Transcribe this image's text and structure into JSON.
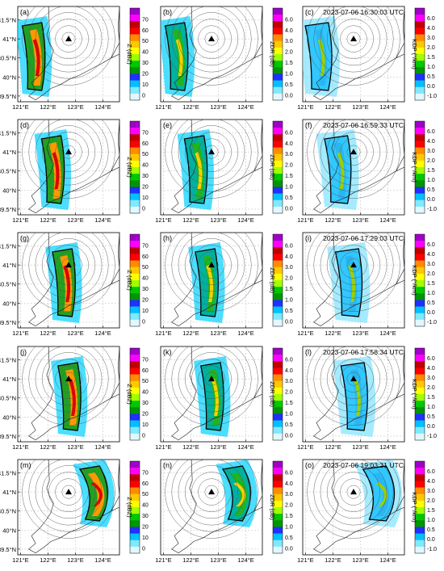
{
  "figure": {
    "colorbars": {
      "Z": {
        "label": "Z (dBZ)",
        "ticks": [
          "70",
          "60",
          "50",
          "40",
          "30",
          "20",
          "10",
          "0"
        ],
        "colors": [
          "#a000c8",
          "#ff00ff",
          "#c00000",
          "#ff0000",
          "#ff8c00",
          "#ffc800",
          "#ffff00",
          "#a0ff00",
          "#00c800",
          "#009600",
          "#2030ff",
          "#00c0ff",
          "#80e8ff",
          "#e0f8ff"
        ]
      },
      "ZDR": {
        "label": "ZDR (dB)",
        "ticks": [
          "6.0",
          "4.0",
          "3.0",
          "2.0",
          "1.5",
          "1.0",
          "0.5",
          "0.0"
        ],
        "colors": [
          "#a000c8",
          "#ff00ff",
          "#c00000",
          "#ff0000",
          "#ff8c00",
          "#ffc800",
          "#ffff00",
          "#a0ff00",
          "#00c800",
          "#009600",
          "#2030ff",
          "#00c0ff",
          "#80e8ff",
          "#e0f8ff"
        ]
      },
      "KDP": {
        "label": "KDP (°/km)",
        "ticks": [
          "6.0",
          "4.0",
          "3.0",
          "2.0",
          "1.5",
          "1.0",
          "0.5",
          "0.0",
          "-1.0"
        ],
        "colors": [
          "#a000c8",
          "#ff00ff",
          "#c00000",
          "#ff0000",
          "#ff8c00",
          "#ffc800",
          "#ffff00",
          "#a0ff00",
          "#00c800",
          "#009600",
          "#2030ff",
          "#00c0ff",
          "#80e8ff",
          "#e0f8ff"
        ]
      }
    },
    "axes": {
      "x_ticks": [
        "121°E",
        "122°E",
        "123°E",
        "124°E"
      ],
      "y_ticks": [
        "41.5°N",
        "41°N",
        "40.5°N",
        "40°N",
        "39.5°N"
      ]
    },
    "rows": [
      {
        "time": "2023-07-06 16:30:03 UTC",
        "panels": [
          "(a)",
          "(b)",
          "(c)"
        ]
      },
      {
        "time": "2023-07-06 16:59:33 UTC",
        "panels": [
          "(d)",
          "(e)",
          "(f)"
        ]
      },
      {
        "time": "2023-07-06 17:29:03 UTC",
        "panels": [
          "(g)",
          "(h)",
          "(i)"
        ]
      },
      {
        "time": "2023-07-06 17:58:34 UTC",
        "panels": [
          "(j)",
          "(k)",
          "(l)"
        ]
      },
      {
        "time": "2023-07-06 19:03:31 UTC",
        "panels": [
          "(m)",
          "(n)",
          "(o)"
        ]
      }
    ]
  },
  "chart_data": [
    {
      "type": "heatmap",
      "title": "",
      "description_of_variables": [
        "Z (dBZ)",
        "ZDR (dB)",
        "KDP (°/km)"
      ],
      "x_ticks": [
        "121°E",
        "122°E",
        "123°E",
        "124°E"
      ],
      "y_ticks": [
        "41.5°N",
        "41°N",
        "40.5°N",
        "40°N",
        "39.5°N"
      ],
      "x_range_deg": [
        120.9,
        124.6
      ],
      "y_range_deg": [
        39.35,
        41.85
      ],
      "radar_site": {
        "lon": 123.0,
        "lat": 41.0
      },
      "range_rings": 7,
      "times": [
        "2023-07-06 16:30:03 UTC",
        "2023-07-06 16:59:33 UTC",
        "2023-07-06 17:29:03 UTC",
        "2023-07-06 17:58:34 UTC",
        "2023-07-06 19:03:31 UTC"
      ],
      "storm_line_center_lon": [
        121.45,
        122.15,
        122.55,
        122.75,
        123.55
      ]
    }
  ]
}
